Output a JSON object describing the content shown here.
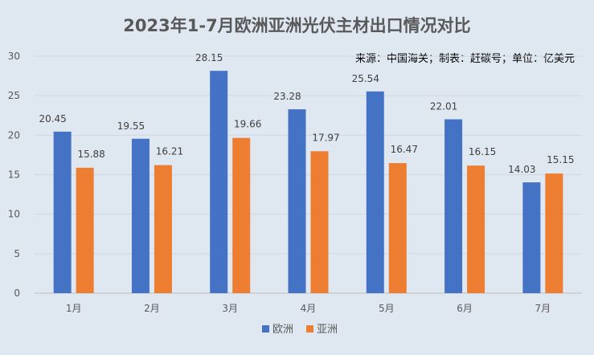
{
  "chart_data": {
    "type": "bar",
    "title": "2023年1-7月欧洲亚洲光伏主材出口情况对比",
    "note": "来源：中国海关；制表：赶碳号；单位：亿美元",
    "categories": [
      "1月",
      "2月",
      "3月",
      "4月",
      "5月",
      "6月",
      "7月"
    ],
    "series": [
      {
        "name": "欧洲",
        "color": "#4472c4",
        "values": [
          20.45,
          19.55,
          28.15,
          23.28,
          25.54,
          22.01,
          14.03
        ]
      },
      {
        "name": "亚洲",
        "color": "#ed7d31",
        "values": [
          15.88,
          16.21,
          19.66,
          17.97,
          16.47,
          16.15,
          15.15
        ]
      }
    ],
    "ylim": [
      0,
      30
    ],
    "yticks": [
      0,
      5,
      10,
      15,
      20,
      25,
      30
    ],
    "grid": true,
    "legend_position": "bottom",
    "xlabel": "",
    "ylabel": ""
  }
}
